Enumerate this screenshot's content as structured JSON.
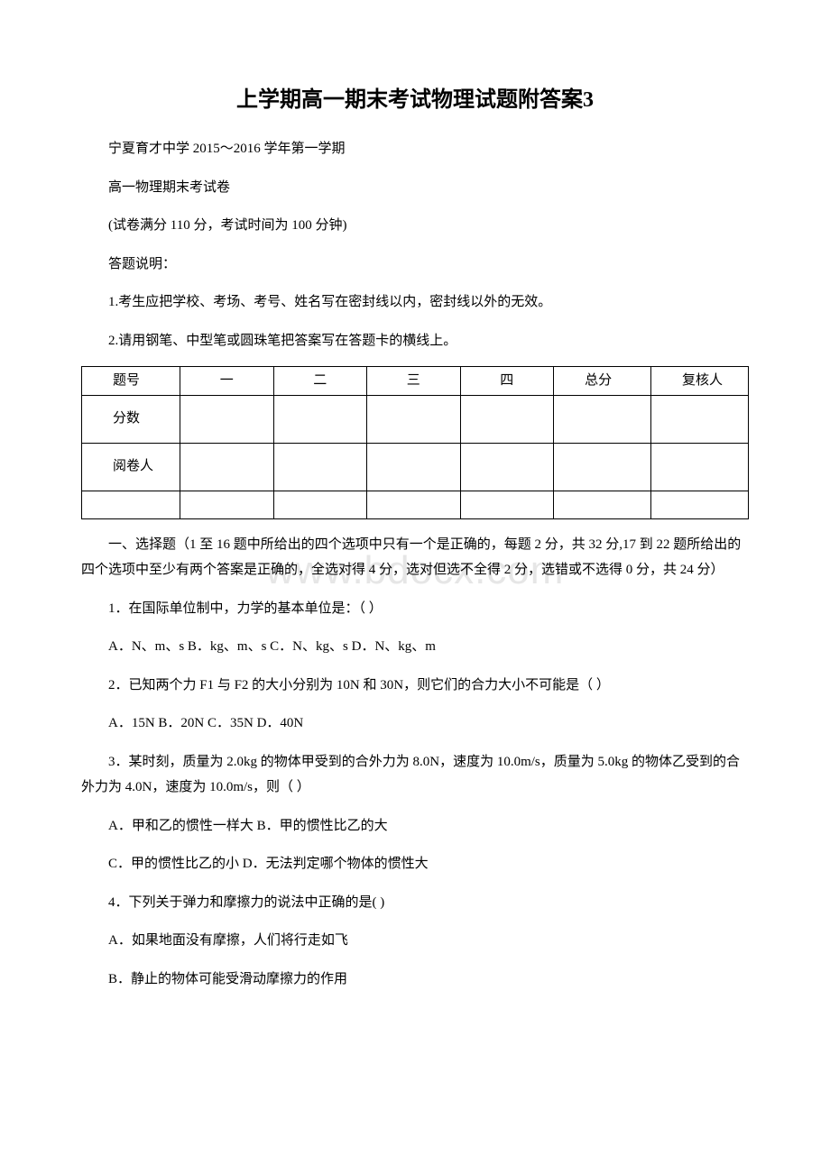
{
  "title": "上学期高一期末考试物理试题附答案3",
  "header": {
    "school_year": "宁夏育才中学 2015～2016 学年第一学期",
    "exam_name": "高一物理期末考试卷",
    "exam_info": "(试卷满分 110 分，考试时间为 100 分钟)",
    "instructions_title": "答题说明：",
    "instruction_1": "1.考生应把学校、考场、考号、姓名写在密封线以内，密封线以外的无效。",
    "instruction_2": "2.请用钢笔、中型笔或圆珠笔把答案写在答题卡的横线上。"
  },
  "score_table": {
    "rows": [
      "题号",
      "分数",
      "阅卷人"
    ],
    "sections": [
      "一",
      "二",
      "三",
      "四"
    ],
    "total": "总分",
    "reviewer": "复核人"
  },
  "section1": {
    "heading": "一、选择题（1 至 16 题中所给出的四个选项中只有一个是正确的，每题 2 分，共 32 分,17 到 22 题所给出的四个选项中至少有两个答案是正确的，全选对得 4 分，选对但选不全得 2 分，选错或不选得 0 分，共 24 分）",
    "q1": {
      "question": "1．在国际单位制中，力学的基本单位是：（ ）",
      "options": "A．N、m、s B．kg、m、s C．N、kg、s D．N、kg、m"
    },
    "q2": {
      "question": "2．已知两个力 F1 与 F2 的大小分别为 10N 和 30N，则它们的合力大小不可能是（ ）",
      "options": " A．15N B．20N C．35N D．40N"
    },
    "q3": {
      "question": "3．某时刻，质量为 2.0kg 的物体甲受到的合外力为 8.0N，速度为 10.0m/s，质量为 5.0kg 的物体乙受到的合外力为 4.0N，速度为 10.0m/s，则（ ）",
      "option_ab": " A．甲和乙的惯性一样大 B．甲的惯性比乙的大",
      "option_cd": " C．甲的惯性比乙的小 D．无法判定哪个物体的惯性大"
    },
    "q4": {
      "question": "4．下列关于弹力和摩擦力的说法中正确的是( )",
      "option_a": "A．如果地面没有摩擦，人们将行走如飞",
      "option_b": "B．静止的物体可能受滑动摩擦力的作用"
    }
  },
  "watermark": "www.bdocx.com"
}
